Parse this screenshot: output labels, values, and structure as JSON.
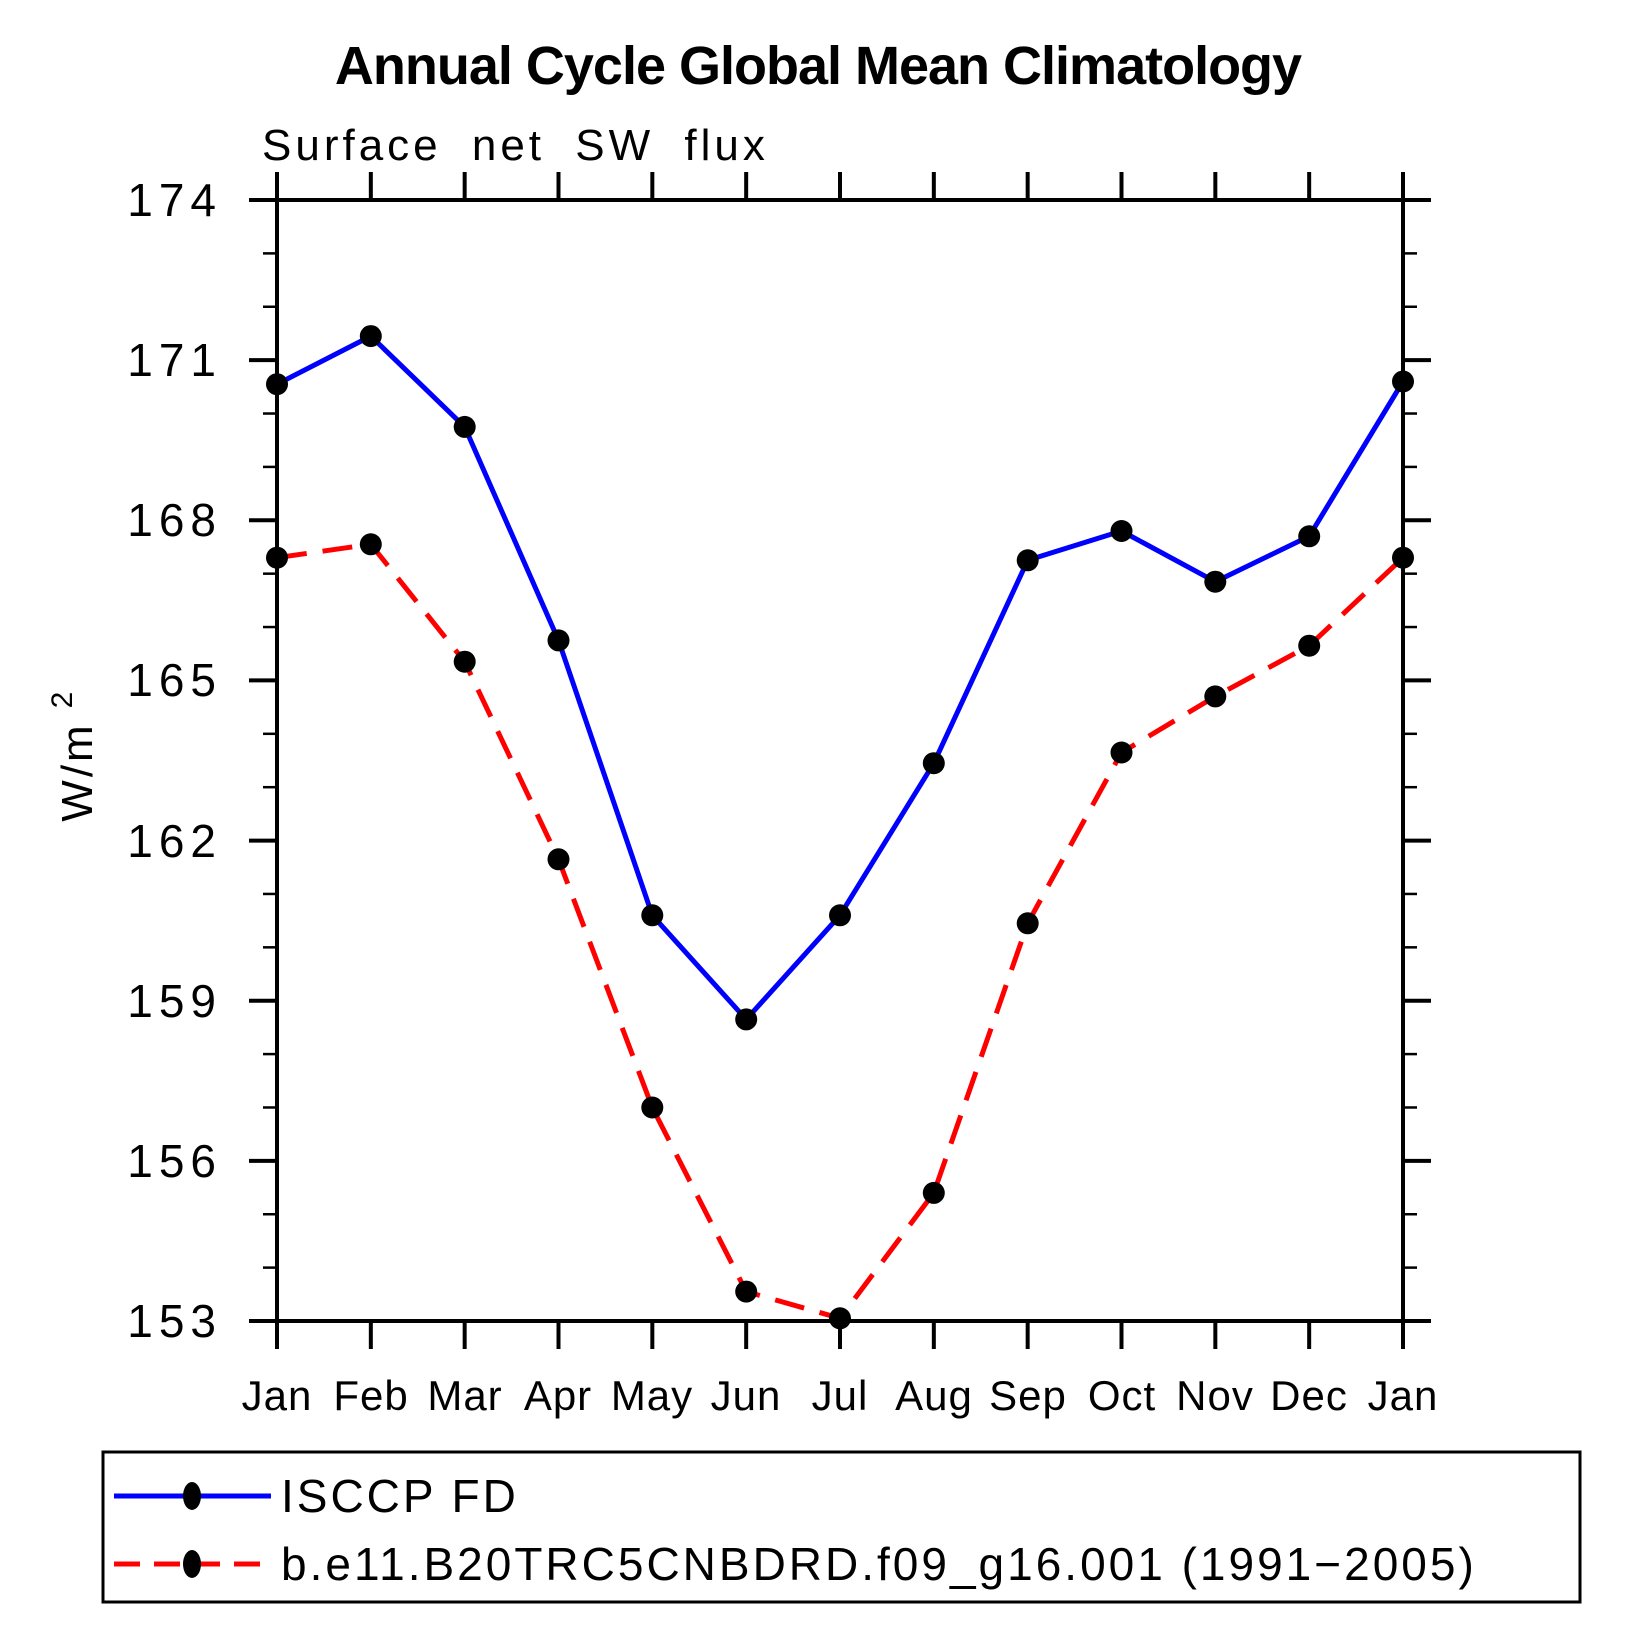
{
  "page": {
    "background": "#ffffff"
  },
  "chart_data": {
    "type": "line",
    "title": "Annual Cycle Global Mean Climatology",
    "subtitle": "Surface net SW flux",
    "ylabel_base": "W/m",
    "ylabel_exponent": "2",
    "x_tick_labels": [
      "Jan",
      "Feb",
      "Mar",
      "Apr",
      "May",
      "Jun",
      "Jul",
      "Aug",
      "Sep",
      "Oct",
      "Nov",
      "Dec",
      "Jan"
    ],
    "y_ticks": [
      174,
      171,
      168,
      165,
      162,
      159,
      156,
      153
    ],
    "y_minor_step": 1,
    "ylim": [
      153,
      174
    ],
    "grid": false,
    "legend_position": "bottom-left-box",
    "axis_color": "#000000",
    "marker_color": "#000000",
    "series": [
      {
        "name": "ISCCP FD",
        "color": "#0000ff",
        "style": "solid",
        "marker": "filled-circle",
        "values": [
          170.55,
          171.45,
          169.75,
          165.75,
          160.6,
          158.65,
          160.6,
          163.45,
          167.25,
          167.8,
          166.85,
          167.7,
          170.6
        ]
      },
      {
        "name": "b.e11.B20TRC5CNBDRD.f09_g16.001 (1991−2005)",
        "color": "#ff0000",
        "style": "dashed",
        "marker": "filled-circle",
        "values": [
          167.3,
          167.55,
          165.35,
          161.65,
          157.0,
          153.55,
          153.05,
          155.4,
          160.45,
          163.65,
          164.7,
          165.65,
          167.3
        ]
      }
    ]
  }
}
